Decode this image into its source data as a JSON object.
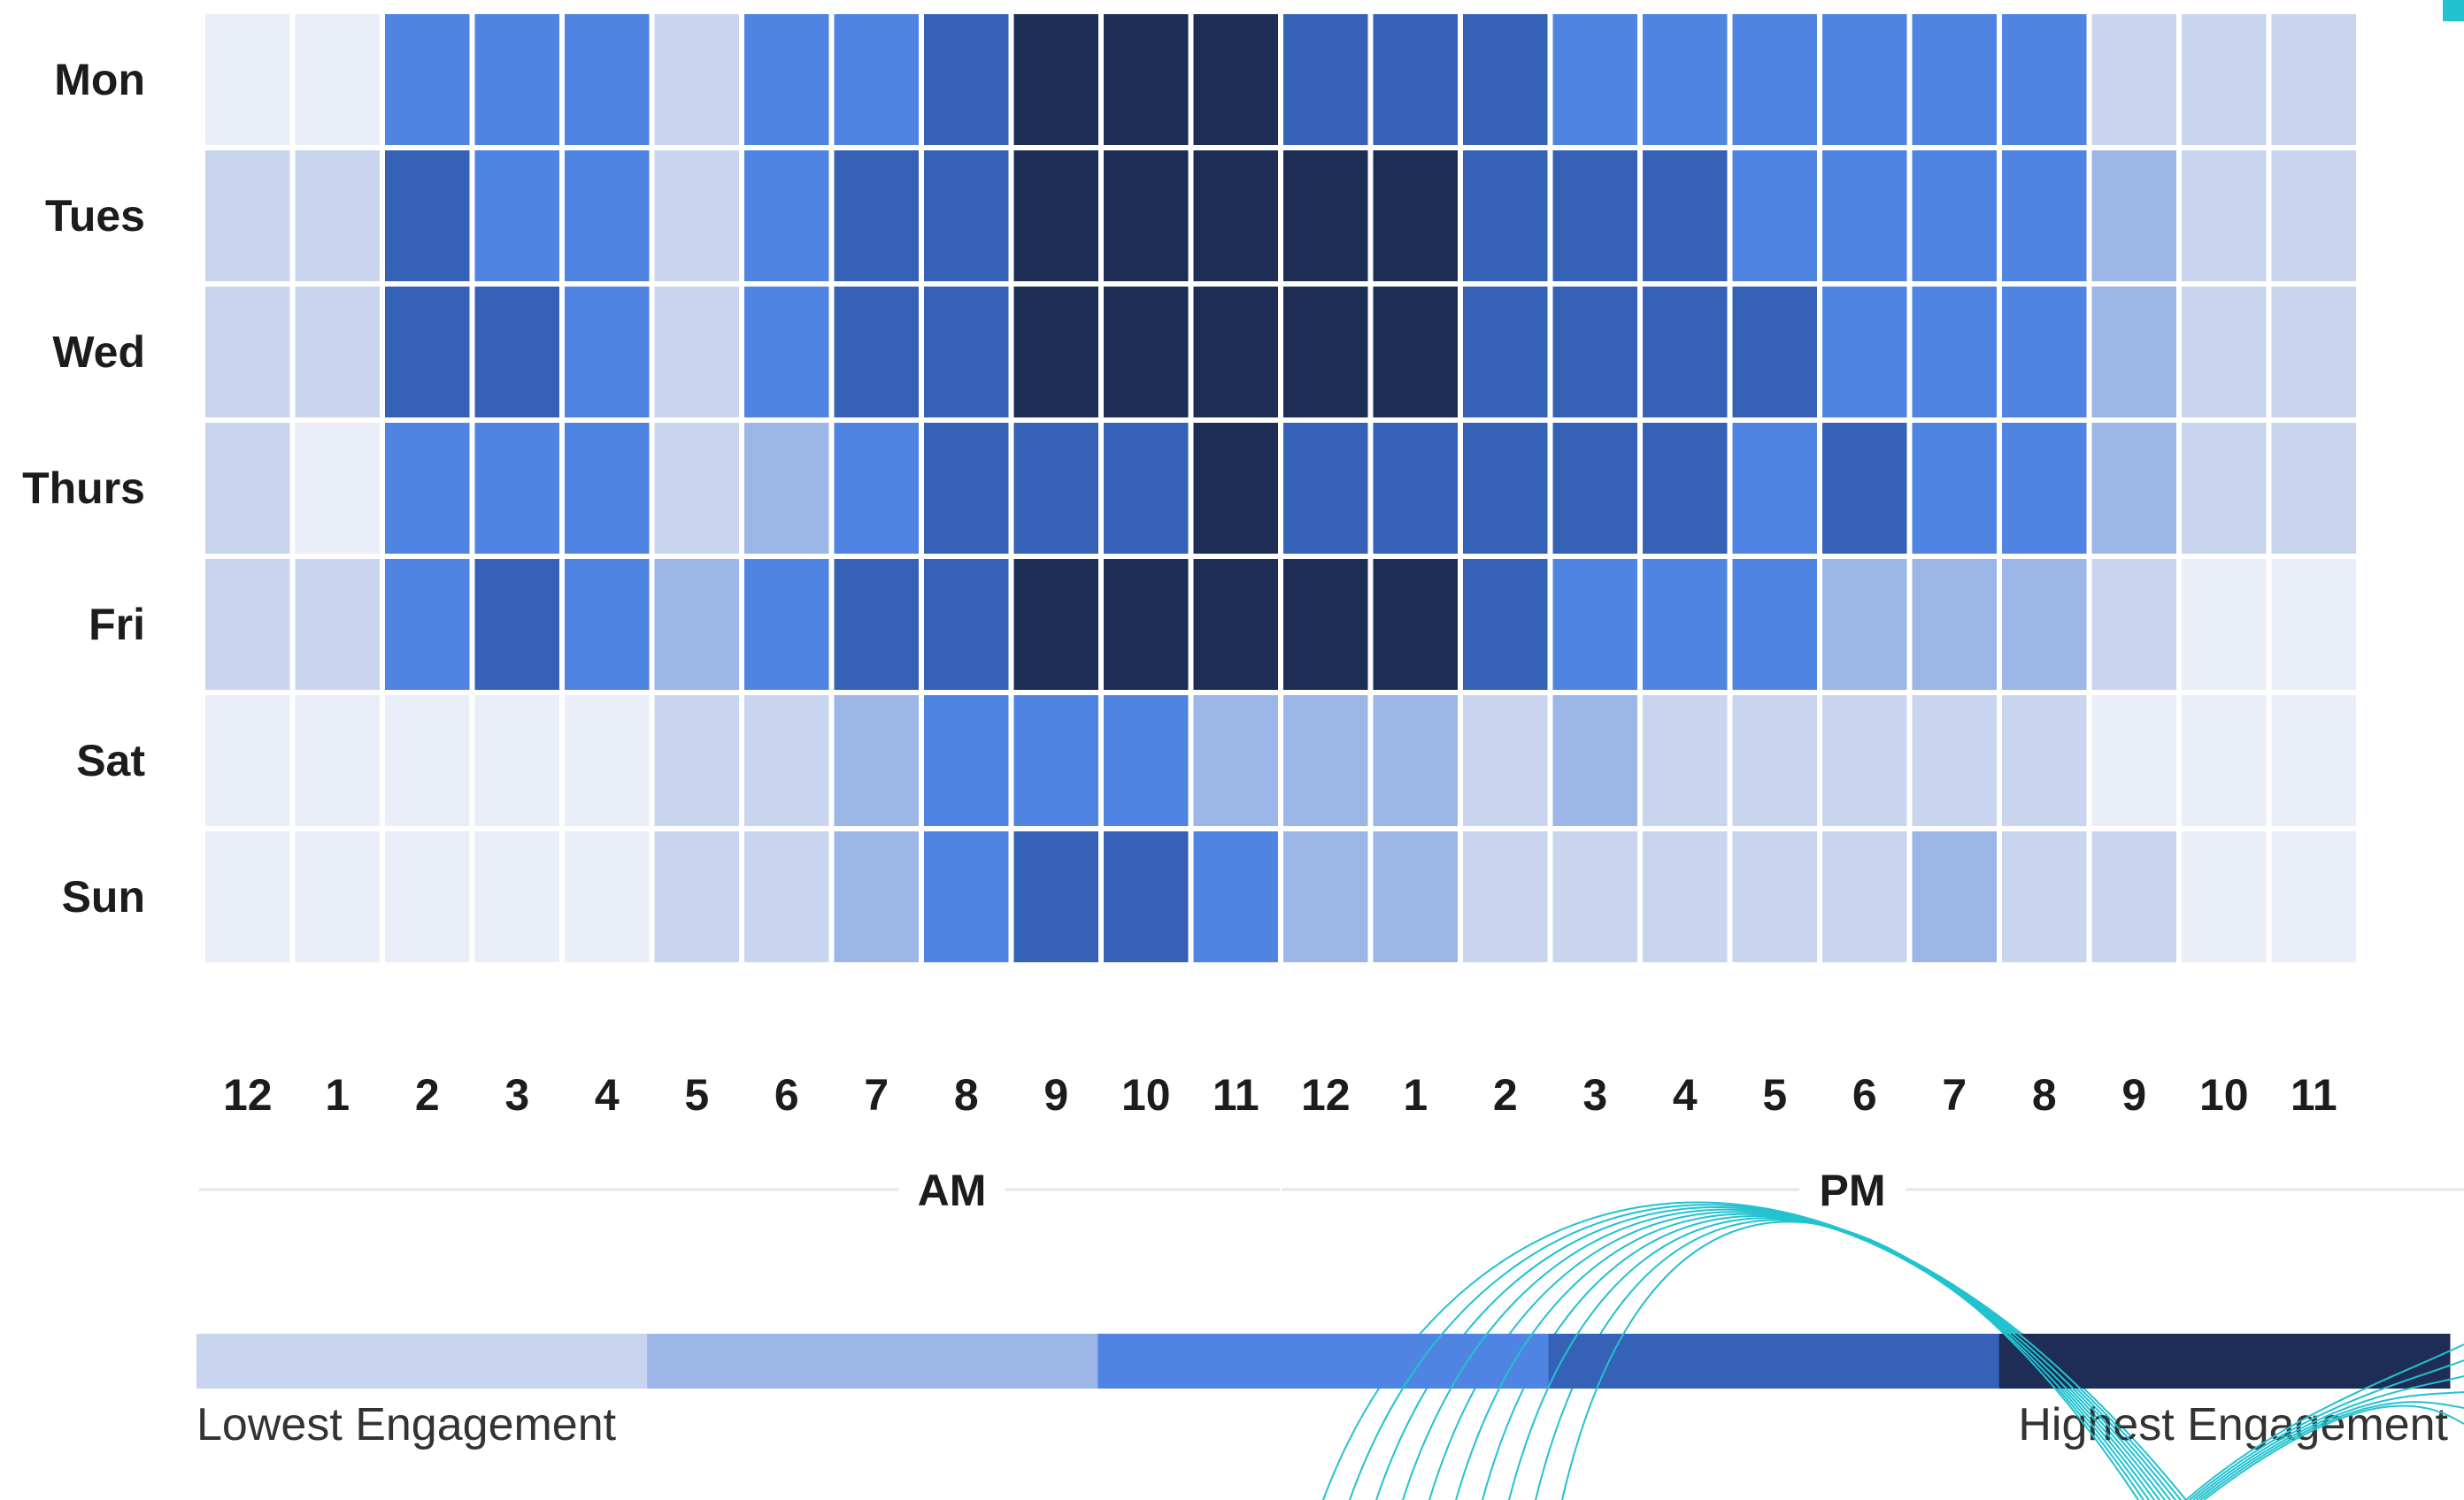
{
  "chart_data": {
    "type": "heatmap",
    "title": "",
    "xlabel": "",
    "ylabel": "",
    "rows": [
      "Mon",
      "Tues",
      "Wed",
      "Thurs",
      "Fri",
      "Sat",
      "Sun"
    ],
    "columns": [
      "12",
      "1",
      "2",
      "3",
      "4",
      "5",
      "6",
      "7",
      "8",
      "9",
      "10",
      "11",
      "12",
      "1",
      "2",
      "3",
      "4",
      "5",
      "6",
      "7",
      "8",
      "9",
      "10",
      "11"
    ],
    "periods": [
      {
        "label": "AM",
        "start": 0,
        "end": 11
      },
      {
        "label": "PM",
        "start": 12,
        "end": 23
      }
    ],
    "values": [
      [
        0,
        0,
        3,
        3,
        3,
        1,
        3,
        3,
        4,
        5,
        5,
        5,
        4,
        4,
        4,
        3,
        3,
        3,
        3,
        3,
        3,
        1,
        1,
        1
      ],
      [
        1,
        1,
        4,
        3,
        3,
        1,
        3,
        4,
        4,
        5,
        5,
        5,
        5,
        5,
        4,
        4,
        4,
        3,
        3,
        3,
        3,
        2,
        1,
        1
      ],
      [
        1,
        1,
        4,
        4,
        3,
        1,
        3,
        4,
        4,
        5,
        5,
        5,
        5,
        5,
        4,
        4,
        4,
        4,
        3,
        3,
        3,
        2,
        1,
        1
      ],
      [
        1,
        0,
        3,
        3,
        3,
        1,
        2,
        3,
        4,
        4,
        4,
        5,
        4,
        4,
        4,
        4,
        4,
        3,
        4,
        3,
        3,
        2,
        1,
        1
      ],
      [
        1,
        1,
        3,
        4,
        3,
        2,
        3,
        4,
        4,
        5,
        5,
        5,
        5,
        5,
        4,
        3,
        3,
        3,
        2,
        2,
        2,
        1,
        0,
        0
      ],
      [
        0,
        0,
        0,
        0,
        0,
        1,
        1,
        2,
        3,
        3,
        3,
        2,
        2,
        2,
        1,
        2,
        1,
        1,
        1,
        1,
        1,
        0,
        0,
        0
      ],
      [
        0,
        0,
        0,
        0,
        0,
        1,
        1,
        2,
        3,
        4,
        4,
        3,
        2,
        2,
        1,
        1,
        1,
        1,
        1,
        2,
        1,
        1,
        0,
        0
      ]
    ],
    "scale": {
      "levels": 5,
      "colors": [
        "#eaeef8",
        "#c9d5ef",
        "#9db6e8",
        "#4f84e2",
        "#3561b6",
        "#1d2d55"
      ],
      "min_label": "Lowest Engagement",
      "max_label": "Highest Engagement"
    },
    "legend_placement": "bottom",
    "grid": false
  },
  "colors": {
    "decoration_accent": "#22c2cf",
    "text": "#1c1c1c",
    "divider": "#e6e6e6"
  }
}
